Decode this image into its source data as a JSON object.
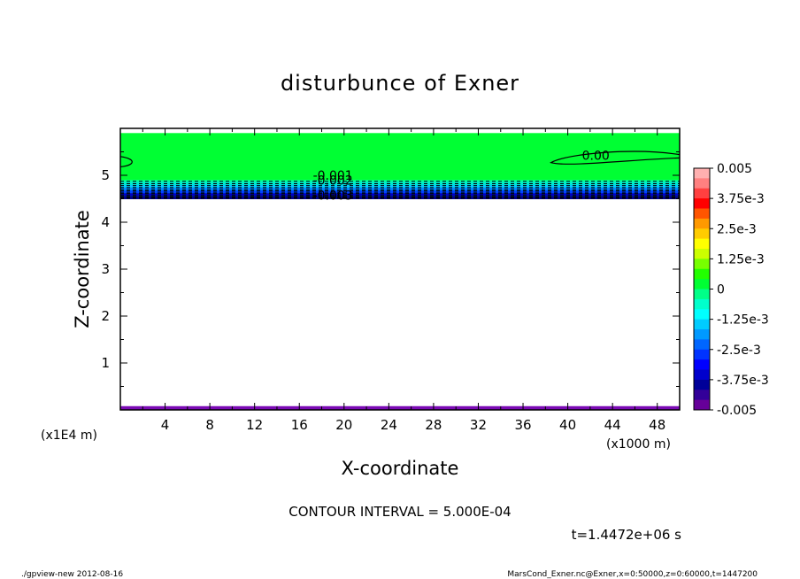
{
  "chart_data": {
    "type": "contour",
    "title": "disturbunce of Exner",
    "xlabel": "X-coordinate",
    "ylabel": "Z-coordinate",
    "x_unit": "(x1000 m)",
    "y_unit": "(x1E4 m)",
    "xlim": [
      0,
      50
    ],
    "ylim": [
      0,
      6
    ],
    "x_ticks": [
      4,
      8,
      12,
      16,
      20,
      24,
      28,
      32,
      36,
      40,
      44,
      48
    ],
    "y_ticks": [
      1,
      2,
      3,
      4,
      5
    ],
    "fills": [
      {
        "z0": 4.5,
        "z1": 5.9,
        "color": "#00ff33"
      },
      {
        "z0": 4.86,
        "z1": 4.9,
        "color": "#00ff99"
      },
      {
        "z0": 4.8,
        "z1": 4.86,
        "color": "#00eecc"
      },
      {
        "z0": 4.74,
        "z1": 4.8,
        "color": "#00ccff"
      },
      {
        "z0": 4.68,
        "z1": 4.74,
        "color": "#0088ff"
      },
      {
        "z0": 4.62,
        "z1": 4.68,
        "color": "#0044ff"
      },
      {
        "z0": 4.56,
        "z1": 4.62,
        "color": "#0000cc"
      },
      {
        "z0": 4.49,
        "z1": 4.56,
        "color": "#000088"
      },
      {
        "z0": 0.0,
        "z1": 0.08,
        "color": "#7a0ab4"
      }
    ],
    "dashed_contour_levels_z": [
      4.51,
      4.53,
      4.55,
      4.58,
      4.61,
      4.64,
      4.67,
      4.7,
      4.74,
      4.78,
      4.82,
      4.87
    ],
    "contour_labels": [
      {
        "text": "-0.001",
        "x": 19.0,
        "z": 5.0
      },
      {
        "text": "-0.002",
        "x": 19.0,
        "z": 4.9
      },
      {
        "text": "-0.003",
        "x": 19.0,
        "z": 4.58
      },
      {
        "text": "0.00",
        "x": 42.5,
        "z": 5.42
      }
    ],
    "colorbar": {
      "labels": [
        "0.005",
        "3.75e-3",
        "2.5e-3",
        "1.25e-3",
        "0",
        "-1.25e-3",
        "-2.5e-3",
        "-3.75e-3",
        "-0.005"
      ],
      "colors": [
        "#ffb0b0",
        "#ff8080",
        "#ff4040",
        "#ff0000",
        "#ff5500",
        "#ff9900",
        "#ffcc00",
        "#ffff00",
        "#ccff00",
        "#77ff00",
        "#22ff00",
        "#00ff33",
        "#00ff88",
        "#00ffcc",
        "#00ffff",
        "#00ccff",
        "#0099ff",
        "#0066ff",
        "#0033ff",
        "#0000ff",
        "#0000cc",
        "#000099",
        "#330099",
        "#660099"
      ]
    },
    "contour_interval_text": "CONTOUR INTERVAL = 5.000E-04",
    "time_text": "t=1.4472e+06 s",
    "footer_left": "./gpview-new   2012-08-16",
    "footer_right": "MarsCond_Exner.nc@Exner,x=0:50000,z=0:60000,t=1447200"
  }
}
